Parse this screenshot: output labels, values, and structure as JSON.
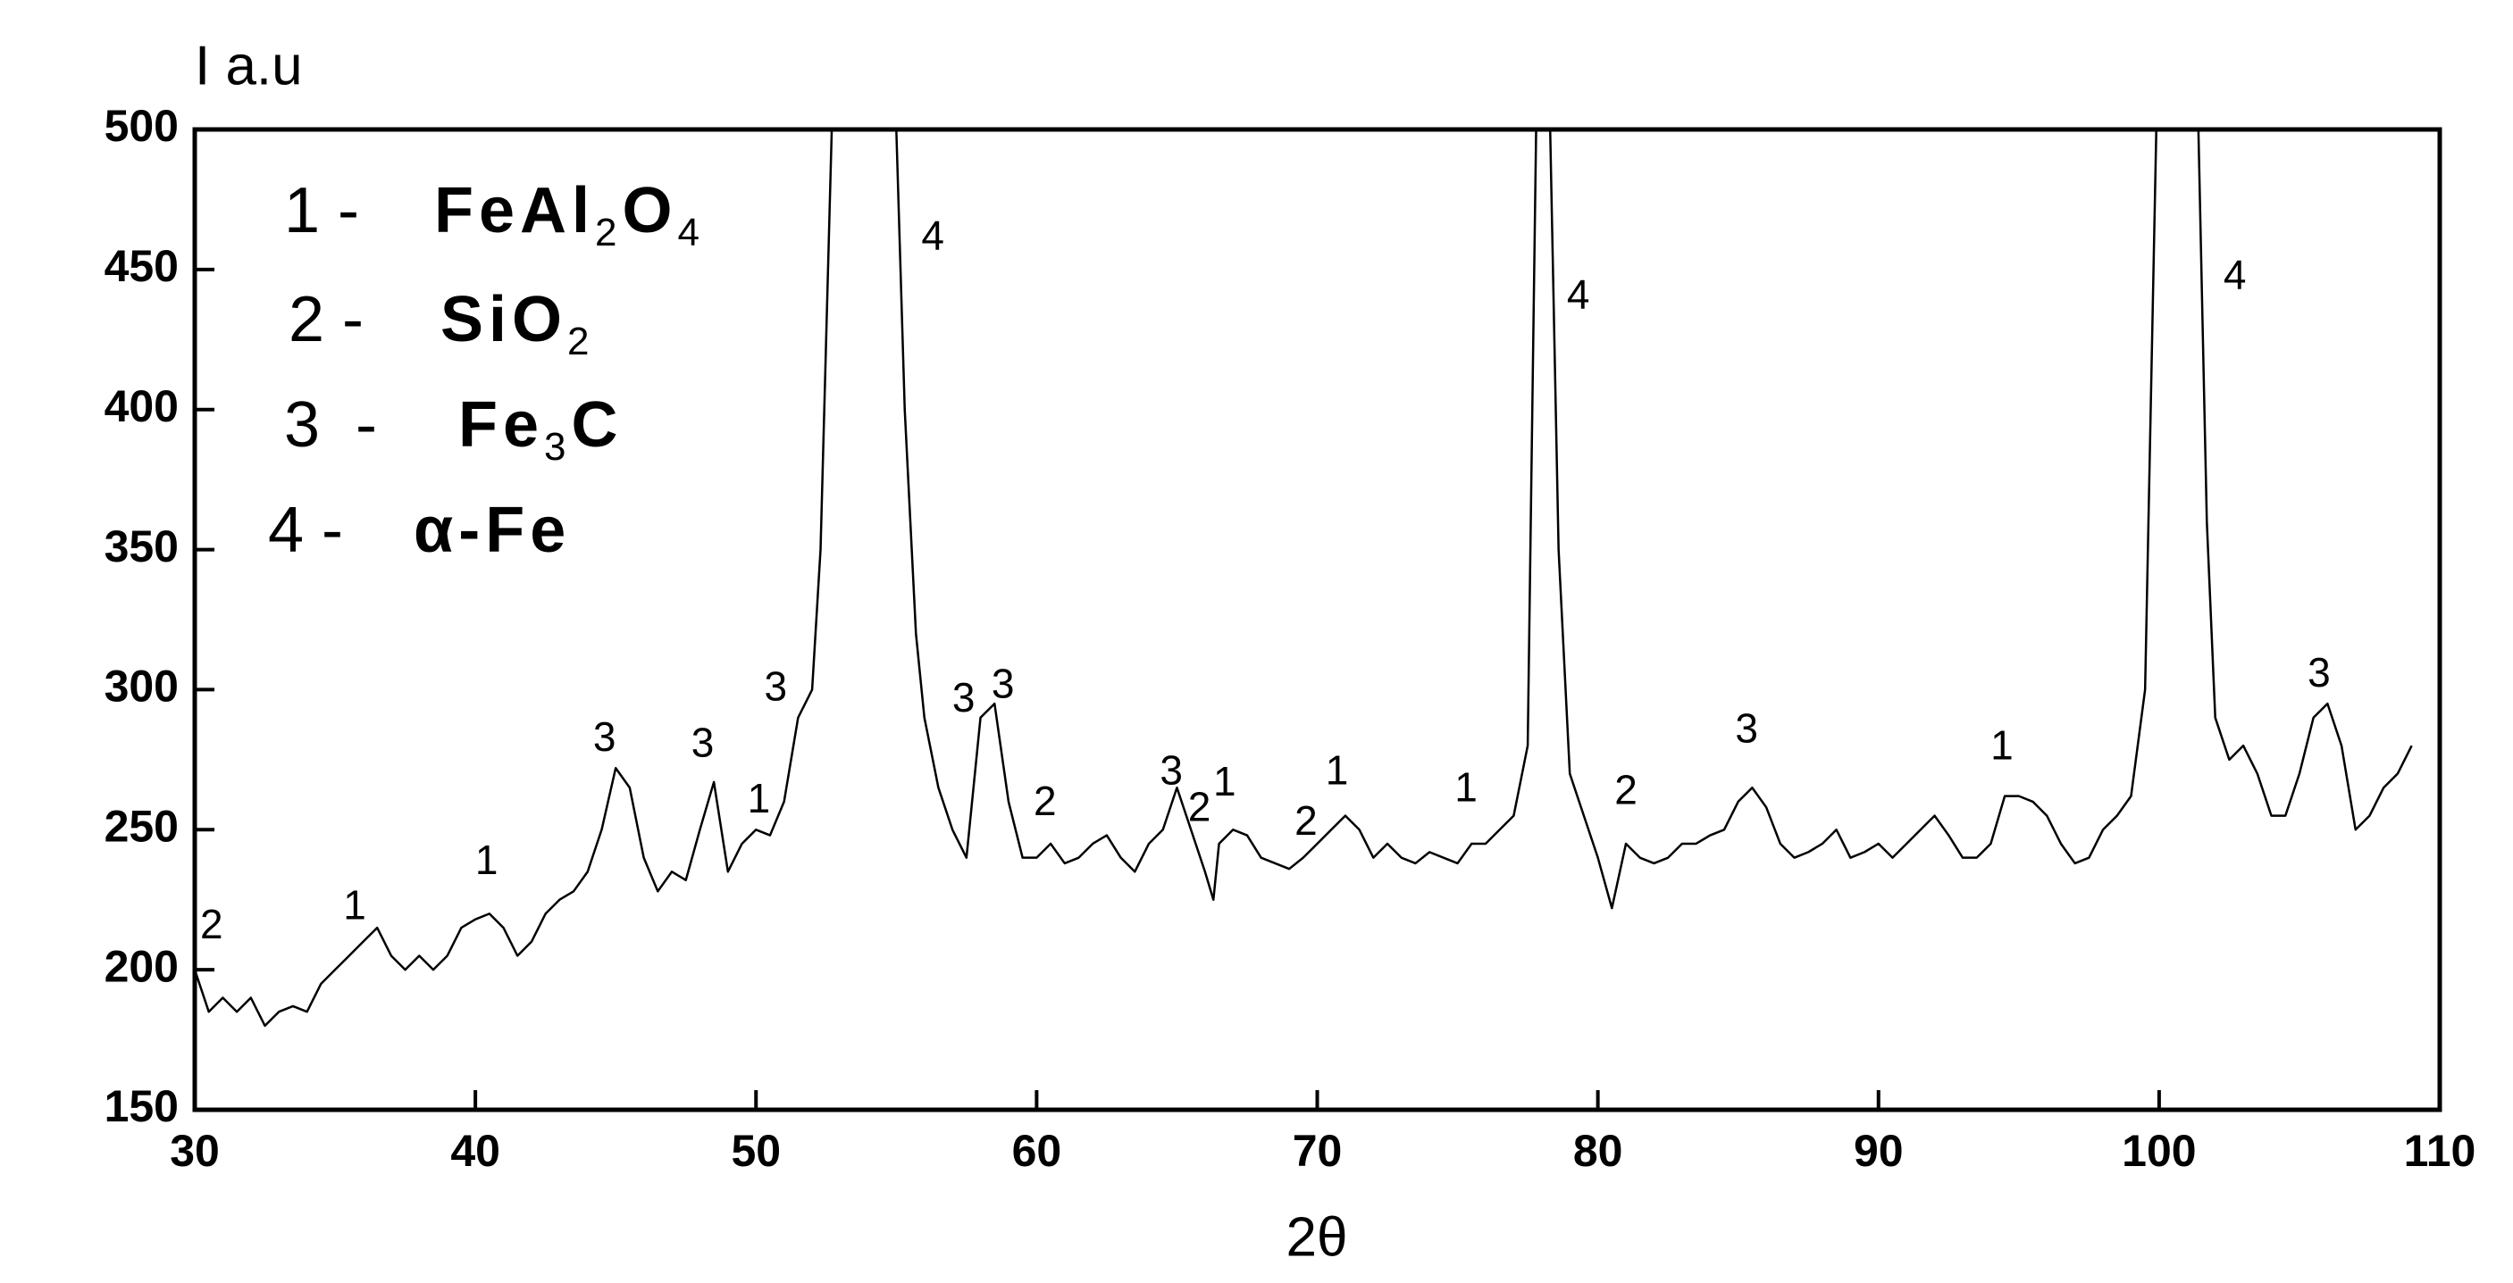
{
  "chart_data": {
    "type": "line",
    "xlabel": "2θ",
    "ylabel": "I a.u",
    "color": "#000000",
    "xlim": [
      30,
      110
    ],
    "ylim": [
      150,
      500
    ],
    "xticks": [
      30,
      40,
      50,
      60,
      70,
      80,
      90,
      100,
      110
    ],
    "yticks": [
      150,
      200,
      250,
      300,
      350,
      400,
      450,
      500
    ],
    "x": [
      30,
      30.5,
      31,
      31.5,
      32,
      32.5,
      33,
      33.5,
      34,
      34.5,
      35,
      35.5,
      36,
      36.5,
      37,
      37.5,
      38,
      38.5,
      39,
      39.5,
      40,
      40.5,
      41,
      41.5,
      42,
      42.5,
      43,
      43.5,
      44,
      44.5,
      45,
      45.5,
      46,
      46.5,
      47,
      47.5,
      48,
      48.5,
      49,
      49.5,
      50,
      50.5,
      51,
      51.5,
      52,
      52.3,
      52.7,
      55,
      55.3,
      55.7,
      56,
      56.5,
      57,
      57.5,
      58,
      58.5,
      59,
      59.5,
      60,
      60.5,
      61,
      61.5,
      62,
      62.5,
      63,
      63.5,
      64,
      64.5,
      65,
      65.5,
      66,
      66.3,
      66.5,
      67,
      67.5,
      68,
      68.5,
      69,
      69.5,
      70,
      70.5,
      71,
      71.5,
      72,
      72.5,
      73,
      73.5,
      74,
      74.5,
      75,
      75.5,
      76,
      76.5,
      77,
      77.5,
      77.8,
      78.3,
      78.6,
      79,
      79.5,
      80,
      80.5,
      81,
      81.5,
      82,
      82.5,
      83,
      83.5,
      84,
      84.5,
      85,
      85.5,
      86,
      86.5,
      87,
      87.5,
      88,
      88.5,
      89,
      89.5,
      90,
      90.5,
      91,
      91.5,
      92,
      92.5,
      93,
      93.5,
      94,
      94.5,
      95,
      95.5,
      96,
      96.5,
      97,
      97.5,
      98,
      98.5,
      99,
      99.5,
      99.9,
      101.4,
      101.7,
      102,
      102.5,
      103,
      103.5,
      104,
      104.5,
      105,
      105.5,
      106,
      106.5,
      107,
      107.5,
      108,
      108.5,
      109
    ],
    "values": [
      200,
      185,
      190,
      185,
      190,
      180,
      185,
      187,
      185,
      195,
      200,
      205,
      210,
      215,
      205,
      200,
      205,
      200,
      205,
      215,
      218,
      220,
      215,
      205,
      210,
      220,
      225,
      228,
      235,
      250,
      272,
      265,
      240,
      228,
      235,
      232,
      250,
      267,
      235,
      245,
      250,
      248,
      260,
      290,
      300,
      350,
      500,
      500,
      400,
      320,
      290,
      265,
      250,
      240,
      290,
      295,
      260,
      240,
      240,
      245,
      238,
      240,
      245,
      248,
      240,
      235,
      245,
      250,
      265,
      250,
      235,
      225,
      245,
      250,
      248,
      240,
      238,
      236,
      240,
      245,
      250,
      255,
      250,
      240,
      245,
      240,
      238,
      242,
      240,
      238,
      245,
      245,
      250,
      255,
      280,
      500,
      500,
      350,
      270,
      255,
      240,
      222,
      245,
      240,
      238,
      240,
      245,
      245,
      248,
      250,
      260,
      265,
      258,
      245,
      240,
      242,
      245,
      250,
      240,
      242,
      245,
      240,
      245,
      250,
      255,
      248,
      240,
      240,
      245,
      262,
      262,
      260,
      255,
      245,
      238,
      240,
      250,
      255,
      262,
      300,
      500,
      500,
      360,
      290,
      275,
      280,
      270,
      255,
      255,
      270,
      290,
      295,
      280,
      250,
      255,
      265,
      270,
      280
    ],
    "annotations": [
      {
        "text": "2",
        "x": 30.6,
        "y": 215
      },
      {
        "text": "1",
        "x": 35.7,
        "y": 222
      },
      {
        "text": "1",
        "x": 40.4,
        "y": 238
      },
      {
        "text": "3",
        "x": 44.6,
        "y": 282
      },
      {
        "text": "3",
        "x": 48.1,
        "y": 280
      },
      {
        "text": "1",
        "x": 50.1,
        "y": 260
      },
      {
        "text": "3",
        "x": 50.7,
        "y": 300
      },
      {
        "text": "4",
        "x": 56.3,
        "y": 461
      },
      {
        "text": "3",
        "x": 57.4,
        "y": 296
      },
      {
        "text": "3",
        "x": 58.8,
        "y": 301
      },
      {
        "text": "2",
        "x": 60.3,
        "y": 259
      },
      {
        "text": "3",
        "x": 64.8,
        "y": 270
      },
      {
        "text": "2",
        "x": 65.8,
        "y": 257
      },
      {
        "text": "1",
        "x": 66.7,
        "y": 266
      },
      {
        "text": "2",
        "x": 69.6,
        "y": 252
      },
      {
        "text": "1",
        "x": 70.7,
        "y": 270
      },
      {
        "text": "1",
        "x": 75.3,
        "y": 264
      },
      {
        "text": "4",
        "x": 79.3,
        "y": 440
      },
      {
        "text": "2",
        "x": 81.0,
        "y": 263
      },
      {
        "text": "3",
        "x": 85.3,
        "y": 285
      },
      {
        "text": "1",
        "x": 94.4,
        "y": 279
      },
      {
        "text": "4",
        "x": 102.7,
        "y": 447
      },
      {
        "text": "3",
        "x": 105.7,
        "y": 305
      }
    ],
    "legend": [
      {
        "label": "1 -",
        "parts": [
          "FeAl",
          "2",
          "O",
          "4"
        ]
      },
      {
        "label": "2 -",
        "parts": [
          "SiO",
          "2"
        ]
      },
      {
        "label": "3  -",
        "parts": [
          "Fe",
          "3",
          "C"
        ]
      },
      {
        "label": "4 -",
        "parts": [
          "α-Fe"
        ]
      }
    ]
  }
}
